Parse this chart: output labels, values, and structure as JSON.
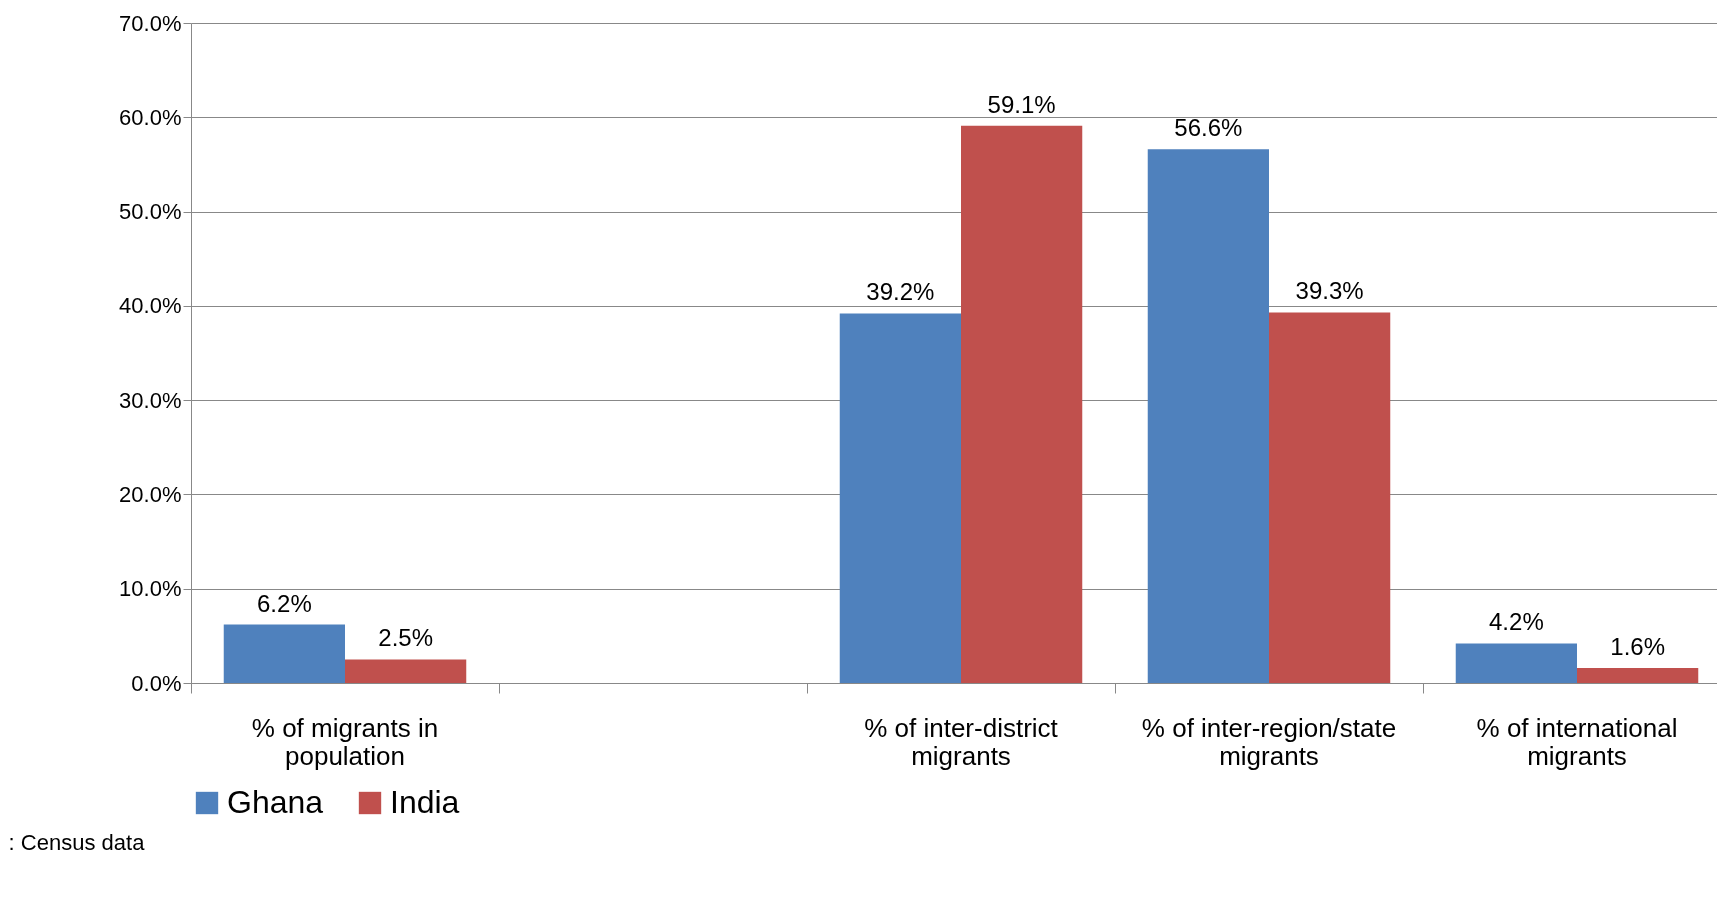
{
  "chart_data": {
    "type": "bar",
    "categories": [
      "% of migrants in population",
      null,
      "% of inter-district migrants",
      "% of inter-region/state migrants",
      "% of international migrants"
    ],
    "series": [
      {
        "name": "Ghana",
        "color": "#4f81bd",
        "values": [
          6.2,
          null,
          39.2,
          56.6,
          4.2
        ],
        "value_labels": [
          "6.2%",
          null,
          "39.2%",
          "56.6%",
          "4.2%"
        ]
      },
      {
        "name": "India",
        "color": "#c0504d",
        "values": [
          2.5,
          null,
          59.1,
          39.3,
          1.6
        ],
        "value_labels": [
          "2.5%",
          null,
          "59.1%",
          "39.3%",
          "1.6%"
        ]
      }
    ],
    "ylim": [
      0,
      70
    ],
    "yticks": [
      {
        "value": 0,
        "label": "0.0%"
      },
      {
        "value": 10,
        "label": "10.0%"
      },
      {
        "value": 20,
        "label": "20.0%"
      },
      {
        "value": 30,
        "label": "30.0%"
      },
      {
        "value": 40,
        "label": "40.0%"
      },
      {
        "value": 50,
        "label": "50.0%"
      },
      {
        "value": 60,
        "label": "60.0%"
      },
      {
        "value": 70,
        "label": "70.0%"
      }
    ],
    "grid": "y",
    "legend": "bottom",
    "annotations": [
      ": Census data"
    ]
  }
}
